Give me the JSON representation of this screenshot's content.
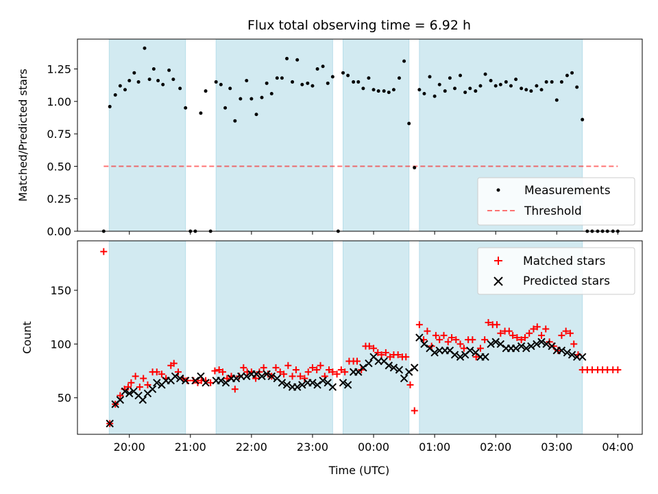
{
  "chart_data": {
    "title": "Flux total observing time = 6.92 h",
    "xlabel": "Time (UTC)",
    "x_unit": "hours UTC (values after midnight continue past 24)",
    "x_range": [
      19.15,
      28.4
    ],
    "x_ticks": [
      20,
      21,
      22,
      23,
      24,
      25,
      26,
      27,
      28
    ],
    "x_tick_labels": [
      "20:00",
      "21:00",
      "22:00",
      "23:00",
      "00:00",
      "01:00",
      "02:00",
      "03:00",
      "04:00"
    ],
    "shaded_intervals": [
      [
        19.67,
        20.92
      ],
      [
        21.42,
        23.33
      ],
      [
        23.5,
        24.58
      ],
      [
        24.75,
        27.42
      ]
    ],
    "colors": {
      "shade": "#add8e6",
      "matched": "#ff0000",
      "predicted": "#000000",
      "threshold": "#ff0000",
      "measurements": "#000000"
    },
    "top": {
      "type": "scatter",
      "ylabel": "Matched/Predicted stars",
      "ylim": [
        0,
        1.48
      ],
      "y_ticks": [
        0.0,
        0.25,
        0.5,
        0.75,
        1.0,
        1.25
      ],
      "y_tick_labels": [
        "0.00",
        "0.25",
        "0.50",
        "0.75",
        "1.00",
        "1.25"
      ],
      "legend_position": "lower-right",
      "legend": [
        "Measurements",
        "Threshold"
      ],
      "threshold": {
        "y": 0.5,
        "x": [
          19.58,
          28.0
        ]
      },
      "points": [
        [
          19.58,
          0
        ],
        [
          19.68,
          0.96
        ],
        [
          19.77,
          1.05
        ],
        [
          19.85,
          1.12
        ],
        [
          19.93,
          1.09
        ],
        [
          20.0,
          1.16
        ],
        [
          20.08,
          1.22
        ],
        [
          20.15,
          1.15
        ],
        [
          20.25,
          1.41
        ],
        [
          20.33,
          1.17
        ],
        [
          20.4,
          1.25
        ],
        [
          20.47,
          1.16
        ],
        [
          20.55,
          1.13
        ],
        [
          20.65,
          1.24
        ],
        [
          20.72,
          1.17
        ],
        [
          20.83,
          1.1
        ],
        [
          20.92,
          0.95
        ],
        [
          21.0,
          0
        ],
        [
          21.08,
          0
        ],
        [
          21.17,
          0.91
        ],
        [
          21.25,
          1.08
        ],
        [
          21.33,
          0
        ],
        [
          21.42,
          1.15
        ],
        [
          21.5,
          1.13
        ],
        [
          21.57,
          0.95
        ],
        [
          21.65,
          1.1
        ],
        [
          21.73,
          0.85
        ],
        [
          21.82,
          1.02
        ],
        [
          21.92,
          1.16
        ],
        [
          22.0,
          1.02
        ],
        [
          22.08,
          0.9
        ],
        [
          22.17,
          1.03
        ],
        [
          22.25,
          1.14
        ],
        [
          22.33,
          1.06
        ],
        [
          22.42,
          1.18
        ],
        [
          22.5,
          1.18
        ],
        [
          22.58,
          1.33
        ],
        [
          22.67,
          1.15
        ],
        [
          22.75,
          1.32
        ],
        [
          22.83,
          1.13
        ],
        [
          22.92,
          1.14
        ],
        [
          23.0,
          1.12
        ],
        [
          23.08,
          1.25
        ],
        [
          23.17,
          1.27
        ],
        [
          23.25,
          1.14
        ],
        [
          23.33,
          1.19
        ],
        [
          23.42,
          0
        ],
        [
          23.5,
          1.22
        ],
        [
          23.58,
          1.2
        ],
        [
          23.67,
          1.15
        ],
        [
          23.75,
          1.15
        ],
        [
          23.83,
          1.1
        ],
        [
          23.92,
          1.18
        ],
        [
          24.0,
          1.09
        ],
        [
          24.08,
          1.08
        ],
        [
          24.17,
          1.08
        ],
        [
          24.25,
          1.07
        ],
        [
          24.33,
          1.09
        ],
        [
          24.42,
          1.18
        ],
        [
          24.5,
          1.31
        ],
        [
          24.58,
          0.83
        ],
        [
          24.67,
          0.49
        ],
        [
          24.75,
          1.09
        ],
        [
          24.83,
          1.06
        ],
        [
          24.92,
          1.19
        ],
        [
          25.0,
          1.04
        ],
        [
          25.08,
          1.13
        ],
        [
          25.17,
          1.08
        ],
        [
          25.25,
          1.18
        ],
        [
          25.33,
          1.1
        ],
        [
          25.42,
          1.2
        ],
        [
          25.5,
          1.07
        ],
        [
          25.58,
          1.1
        ],
        [
          25.67,
          1.08
        ],
        [
          25.75,
          1.12
        ],
        [
          25.83,
          1.21
        ],
        [
          25.92,
          1.16
        ],
        [
          26.0,
          1.12
        ],
        [
          26.08,
          1.13
        ],
        [
          26.17,
          1.15
        ],
        [
          26.25,
          1.12
        ],
        [
          26.33,
          1.17
        ],
        [
          26.42,
          1.1
        ],
        [
          26.5,
          1.09
        ],
        [
          26.58,
          1.08
        ],
        [
          26.67,
          1.12
        ],
        [
          26.75,
          1.09
        ],
        [
          26.83,
          1.15
        ],
        [
          26.92,
          1.15
        ],
        [
          27.0,
          1.01
        ],
        [
          27.08,
          1.15
        ],
        [
          27.17,
          1.2
        ],
        [
          27.25,
          1.22
        ],
        [
          27.33,
          1.11
        ],
        [
          27.42,
          0.86
        ],
        [
          27.5,
          0
        ],
        [
          27.58,
          0
        ],
        [
          27.67,
          0
        ],
        [
          27.75,
          0
        ],
        [
          27.83,
          0
        ],
        [
          27.92,
          0
        ],
        [
          28.0,
          0
        ]
      ]
    },
    "bottom": {
      "type": "scatter",
      "ylabel": "Count",
      "ylim": [
        16,
        196
      ],
      "y_ticks": [
        50,
        100,
        150
      ],
      "y_tick_labels": [
        "50",
        "100",
        "150"
      ],
      "legend_position": "top-right",
      "legend": [
        "Matched stars",
        "Predicted stars"
      ],
      "matched": [
        [
          19.58,
          186
        ],
        [
          19.68,
          26
        ],
        [
          19.77,
          44
        ],
        [
          19.85,
          52
        ],
        [
          19.92,
          58
        ],
        [
          19.98,
          60
        ],
        [
          20.03,
          64
        ],
        [
          20.1,
          70
        ],
        [
          20.17,
          60
        ],
        [
          20.23,
          68
        ],
        [
          20.3,
          62
        ],
        [
          20.38,
          74
        ],
        [
          20.45,
          74
        ],
        [
          20.53,
          72
        ],
        [
          20.6,
          68
        ],
        [
          20.68,
          80
        ],
        [
          20.73,
          82
        ],
        [
          20.8,
          74
        ],
        [
          20.88,
          68
        ],
        [
          20.95,
          66
        ],
        [
          21.05,
          66
        ],
        [
          21.12,
          64
        ],
        [
          21.18,
          66
        ],
        [
          21.25,
          66
        ],
        [
          21.33,
          64
        ],
        [
          21.4,
          75
        ],
        [
          21.47,
          76
        ],
        [
          21.53,
          74
        ],
        [
          21.6,
          68
        ],
        [
          21.67,
          70
        ],
        [
          21.73,
          58
        ],
        [
          21.8,
          70
        ],
        [
          21.87,
          78
        ],
        [
          21.93,
          74
        ],
        [
          22.0,
          74
        ],
        [
          22.07,
          68
        ],
        [
          22.13,
          74
        ],
        [
          22.2,
          78
        ],
        [
          22.27,
          72
        ],
        [
          22.33,
          70
        ],
        [
          22.4,
          78
        ],
        [
          22.47,
          74
        ],
        [
          22.53,
          72
        ],
        [
          22.6,
          80
        ],
        [
          22.67,
          70
        ],
        [
          22.73,
          76
        ],
        [
          22.8,
          70
        ],
        [
          22.87,
          68
        ],
        [
          22.93,
          74
        ],
        [
          23.0,
          78
        ],
        [
          23.07,
          76
        ],
        [
          23.13,
          80
        ],
        [
          23.2,
          70
        ],
        [
          23.27,
          76
        ],
        [
          23.33,
          74
        ],
        [
          23.4,
          72
        ],
        [
          23.47,
          76
        ],
        [
          23.53,
          74
        ],
        [
          23.6,
          84
        ],
        [
          23.67,
          84
        ],
        [
          23.73,
          84
        ],
        [
          23.8,
          76
        ],
        [
          23.87,
          98
        ],
        [
          23.93,
          98
        ],
        [
          24.0,
          96
        ],
        [
          24.07,
          92
        ],
        [
          24.13,
          90
        ],
        [
          24.2,
          92
        ],
        [
          24.27,
          88
        ],
        [
          24.33,
          90
        ],
        [
          24.4,
          90
        ],
        [
          24.47,
          88
        ],
        [
          24.53,
          88
        ],
        [
          24.6,
          62
        ],
        [
          24.67,
          38
        ],
        [
          24.75,
          118
        ],
        [
          24.82,
          104
        ],
        [
          24.88,
          112
        ],
        [
          24.95,
          98
        ],
        [
          25.02,
          108
        ],
        [
          25.08,
          104
        ],
        [
          25.15,
          108
        ],
        [
          25.22,
          102
        ],
        [
          25.28,
          106
        ],
        [
          25.35,
          104
        ],
        [
          25.42,
          100
        ],
        [
          25.48,
          96
        ],
        [
          25.55,
          104
        ],
        [
          25.62,
          104
        ],
        [
          25.68,
          88
        ],
        [
          25.75,
          96
        ],
        [
          25.82,
          104
        ],
        [
          25.88,
          120
        ],
        [
          25.95,
          118
        ],
        [
          26.02,
          118
        ],
        [
          26.08,
          110
        ],
        [
          26.15,
          112
        ],
        [
          26.22,
          112
        ],
        [
          26.28,
          108
        ],
        [
          26.35,
          106
        ],
        [
          26.42,
          104
        ],
        [
          26.48,
          106
        ],
        [
          26.55,
          110
        ],
        [
          26.62,
          114
        ],
        [
          26.68,
          116
        ],
        [
          26.75,
          108
        ],
        [
          26.82,
          114
        ],
        [
          26.88,
          102
        ],
        [
          26.95,
          98
        ],
        [
          27.02,
          94
        ],
        [
          27.08,
          108
        ],
        [
          27.15,
          112
        ],
        [
          27.22,
          110
        ],
        [
          27.28,
          100
        ],
        [
          27.35,
          90
        ],
        [
          27.42,
          76
        ],
        [
          27.5,
          76
        ],
        [
          27.58,
          76
        ],
        [
          27.67,
          76
        ],
        [
          27.75,
          76
        ],
        [
          27.83,
          76
        ],
        [
          27.92,
          76
        ],
        [
          28.0,
          76
        ]
      ],
      "predicted": [
        [
          19.68,
          26
        ],
        [
          19.77,
          44
        ],
        [
          19.85,
          48
        ],
        [
          19.93,
          56
        ],
        [
          20.0,
          54
        ],
        [
          20.07,
          56
        ],
        [
          20.15,
          52
        ],
        [
          20.22,
          48
        ],
        [
          20.3,
          54
        ],
        [
          20.38,
          58
        ],
        [
          20.45,
          64
        ],
        [
          20.53,
          62
        ],
        [
          20.6,
          66
        ],
        [
          20.68,
          66
        ],
        [
          20.75,
          70
        ],
        [
          20.83,
          68
        ],
        [
          20.92,
          66
        ],
        [
          21.08,
          66
        ],
        [
          21.17,
          70
        ],
        [
          21.25,
          64
        ],
        [
          21.42,
          66
        ],
        [
          21.5,
          66
        ],
        [
          21.58,
          64
        ],
        [
          21.67,
          68
        ],
        [
          21.75,
          68
        ],
        [
          21.83,
          70
        ],
        [
          21.92,
          70
        ],
        [
          22.0,
          72
        ],
        [
          22.08,
          72
        ],
        [
          22.17,
          70
        ],
        [
          22.25,
          72
        ],
        [
          22.33,
          70
        ],
        [
          22.42,
          68
        ],
        [
          22.5,
          64
        ],
        [
          22.58,
          62
        ],
        [
          22.67,
          60
        ],
        [
          22.75,
          60
        ],
        [
          22.83,
          62
        ],
        [
          22.92,
          64
        ],
        [
          23.0,
          64
        ],
        [
          23.08,
          62
        ],
        [
          23.17,
          66
        ],
        [
          23.25,
          64
        ],
        [
          23.33,
          60
        ],
        [
          23.5,
          64
        ],
        [
          23.58,
          62
        ],
        [
          23.67,
          74
        ],
        [
          23.75,
          74
        ],
        [
          23.83,
          78
        ],
        [
          23.92,
          82
        ],
        [
          24.0,
          88
        ],
        [
          24.08,
          84
        ],
        [
          24.17,
          84
        ],
        [
          24.25,
          80
        ],
        [
          24.33,
          78
        ],
        [
          24.42,
          76
        ],
        [
          24.5,
          68
        ],
        [
          24.58,
          74
        ],
        [
          24.67,
          78
        ],
        [
          24.75,
          106
        ],
        [
          24.83,
          100
        ],
        [
          24.92,
          96
        ],
        [
          25.0,
          92
        ],
        [
          25.08,
          94
        ],
        [
          25.17,
          94
        ],
        [
          25.25,
          94
        ],
        [
          25.33,
          90
        ],
        [
          25.42,
          88
        ],
        [
          25.5,
          90
        ],
        [
          25.58,
          94
        ],
        [
          25.67,
          92
        ],
        [
          25.75,
          88
        ],
        [
          25.83,
          88
        ],
        [
          25.92,
          100
        ],
        [
          26.0,
          102
        ],
        [
          26.08,
          100
        ],
        [
          26.17,
          96
        ],
        [
          26.25,
          96
        ],
        [
          26.33,
          96
        ],
        [
          26.42,
          98
        ],
        [
          26.5,
          96
        ],
        [
          26.58,
          98
        ],
        [
          26.67,
          100
        ],
        [
          26.75,
          102
        ],
        [
          26.83,
          100
        ],
        [
          26.92,
          98
        ],
        [
          27.0,
          94
        ],
        [
          27.08,
          94
        ],
        [
          27.17,
          92
        ],
        [
          27.25,
          90
        ],
        [
          27.33,
          88
        ],
        [
          27.42,
          88
        ]
      ]
    }
  }
}
